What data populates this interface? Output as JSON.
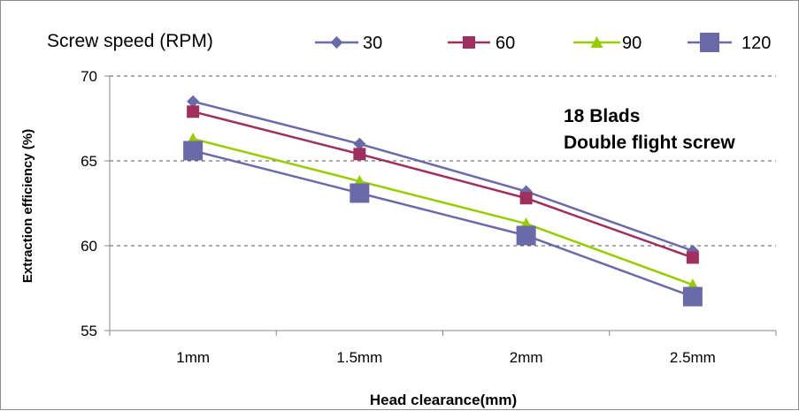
{
  "chart_data": {
    "type": "line",
    "title": "",
    "xlabel": "Head clearance(mm)",
    "ylabel": "Extraction efficiency (%)",
    "categories": [
      "1mm",
      "1.5mm",
      "2mm",
      "2.5mm"
    ],
    "ylim": [
      55,
      70
    ],
    "yticks": [
      55,
      60,
      65,
      70
    ],
    "grid": "horizontal dashed",
    "legend": {
      "title": "Screw speed (RPM)",
      "placement": "top"
    },
    "series": [
      {
        "name": "30",
        "values": [
          68.5,
          66.0,
          63.2,
          59.7
        ],
        "color": "#6a6aa8",
        "marker": "diamond"
      },
      {
        "name": "60",
        "values": [
          67.9,
          65.4,
          62.8,
          59.3
        ],
        "color": "#9e2f5e",
        "marker": "square"
      },
      {
        "name": "90",
        "values": [
          66.3,
          63.8,
          61.3,
          57.7
        ],
        "color": "#99cc00",
        "marker": "triangle"
      },
      {
        "name": "120",
        "values": [
          65.6,
          63.1,
          60.6,
          57.0
        ],
        "color": "#6a6aa8",
        "marker": "bigsquare"
      }
    ],
    "annotations": [
      "18 Blads",
      "Double flight screw"
    ]
  }
}
